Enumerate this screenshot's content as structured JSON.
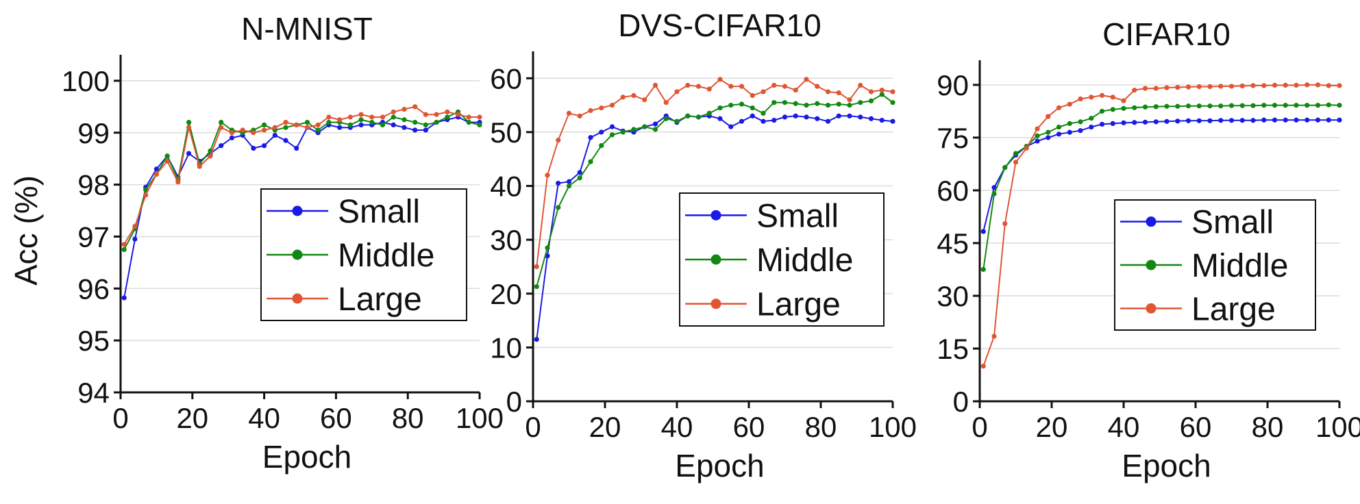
{
  "chart_data": [
    {
      "type": "line",
      "title": "N-MNIST",
      "xlabel": "Epoch",
      "ylabel": "Acc (%)",
      "xlim": [
        0,
        100
      ],
      "ylim": [
        94,
        100.5
      ],
      "xticks": [
        0,
        20,
        40,
        60,
        80,
        100
      ],
      "yticks": [
        94,
        95,
        96,
        97,
        98,
        99,
        100
      ],
      "grid": true,
      "legend": "center-right",
      "x": [
        1,
        4,
        7,
        10,
        13,
        16,
        19,
        22,
        25,
        28,
        31,
        34,
        37,
        40,
        43,
        46,
        49,
        52,
        55,
        58,
        61,
        64,
        67,
        70,
        73,
        76,
        79,
        82,
        85,
        88,
        91,
        94,
        97,
        100
      ],
      "series": [
        {
          "name": "Small",
          "color": "#1a1ae6",
          "values": [
            95.82,
            96.95,
            97.95,
            98.3,
            98.55,
            98.15,
            98.6,
            98.45,
            98.6,
            98.75,
            98.9,
            98.95,
            98.7,
            98.75,
            98.95,
            98.85,
            98.7,
            99.1,
            99.0,
            99.15,
            99.1,
            99.1,
            99.15,
            99.15,
            99.2,
            99.15,
            99.1,
            99.05,
            99.05,
            99.2,
            99.25,
            99.3,
            99.2,
            99.2
          ]
        },
        {
          "name": "Middle",
          "color": "#118811",
          "values": [
            96.75,
            97.15,
            97.9,
            98.2,
            98.55,
            98.1,
            99.2,
            98.4,
            98.65,
            99.2,
            99.05,
            99.0,
            99.05,
            99.15,
            99.05,
            99.1,
            99.15,
            99.2,
            99.05,
            99.2,
            99.2,
            99.15,
            99.25,
            99.2,
            99.15,
            99.3,
            99.25,
            99.2,
            99.15,
            99.2,
            99.3,
            99.4,
            99.2,
            99.15
          ]
        },
        {
          "name": "Large",
          "color": "#e05533",
          "values": [
            96.85,
            97.2,
            97.8,
            98.2,
            98.45,
            98.05,
            99.1,
            98.35,
            98.55,
            99.1,
            99.0,
            99.05,
            99.0,
            99.05,
            99.1,
            99.2,
            99.15,
            99.1,
            99.15,
            99.3,
            99.25,
            99.3,
            99.35,
            99.3,
            99.3,
            99.4,
            99.45,
            99.5,
            99.35,
            99.35,
            99.4,
            99.35,
            99.3,
            99.3
          ]
        }
      ]
    },
    {
      "type": "line",
      "title": "DVS-CIFAR10",
      "xlabel": "Epoch",
      "ylabel": "",
      "xlim": [
        0,
        100
      ],
      "ylim": [
        0,
        65
      ],
      "xticks": [
        0,
        20,
        40,
        60,
        80,
        100
      ],
      "yticks": [
        0,
        10,
        20,
        30,
        40,
        50,
        60
      ],
      "grid": true,
      "legend": "center-right",
      "x": [
        1,
        4,
        7,
        10,
        13,
        16,
        19,
        22,
        25,
        28,
        31,
        34,
        37,
        40,
        43,
        46,
        49,
        52,
        55,
        58,
        61,
        64,
        67,
        70,
        73,
        76,
        79,
        82,
        85,
        88,
        91,
        94,
        97,
        100
      ],
      "series": [
        {
          "name": "Small",
          "color": "#1a1ae6",
          "values": [
            11.5,
            27,
            40.5,
            40.8,
            42.5,
            49,
            50,
            51,
            50.2,
            50,
            51,
            51.5,
            53,
            51.8,
            53,
            52.8,
            53,
            52.5,
            51,
            52,
            53,
            52,
            52.2,
            52.8,
            53,
            52.8,
            52.5,
            52,
            53,
            53,
            52.8,
            52.5,
            52.2,
            52
          ]
        },
        {
          "name": "Middle",
          "color": "#118811",
          "values": [
            21.3,
            28.5,
            36,
            40,
            41.5,
            44.5,
            47.5,
            49.5,
            50,
            50.5,
            51,
            50.5,
            52.5,
            52,
            53,
            52.8,
            53.5,
            54.5,
            55,
            55.2,
            54.5,
            53.5,
            55.5,
            55.5,
            55.3,
            55,
            55.3,
            55,
            55.2,
            55,
            55.5,
            55.8,
            57,
            55.5
          ]
        },
        {
          "name": "Large",
          "color": "#e05533",
          "values": [
            25,
            42,
            48.5,
            53.5,
            53,
            54,
            54.5,
            55,
            56.5,
            56.8,
            56,
            58.7,
            55.5,
            57.5,
            58.7,
            58.5,
            58,
            59.8,
            58.5,
            58.5,
            56.8,
            57.5,
            58.7,
            58.5,
            57.8,
            59.8,
            58.5,
            57.5,
            57.3,
            56,
            58.7,
            57.5,
            57.8,
            57.5
          ]
        }
      ]
    },
    {
      "type": "line",
      "title": "CIFAR10",
      "xlabel": "Epoch",
      "ylabel": "",
      "xlim": [
        0,
        100
      ],
      "ylim": [
        0,
        97
      ],
      "xticks": [
        0,
        20,
        40,
        60,
        80,
        100
      ],
      "yticks": [
        0,
        15,
        30,
        45,
        60,
        75,
        90
      ],
      "grid": true,
      "legend": "center-right",
      "x": [
        1,
        4,
        7,
        10,
        13,
        16,
        19,
        22,
        25,
        28,
        31,
        34,
        37,
        40,
        43,
        46,
        49,
        52,
        55,
        58,
        61,
        64,
        67,
        70,
        73,
        76,
        79,
        82,
        85,
        88,
        91,
        94,
        97,
        100
      ],
      "series": [
        {
          "name": "Small",
          "color": "#1a1ae6",
          "values": [
            48.3,
            60.8,
            66.5,
            70,
            72.5,
            74,
            75,
            76,
            76.5,
            77,
            78,
            78.8,
            79,
            79.2,
            79.3,
            79.4,
            79.5,
            79.6,
            79.7,
            79.8,
            79.8,
            79.8,
            79.9,
            79.9,
            79.9,
            79.9,
            80,
            80,
            80,
            80,
            80,
            80,
            80,
            80
          ]
        },
        {
          "name": "Middle",
          "color": "#118811",
          "values": [
            37.5,
            59,
            66.5,
            70.5,
            72.5,
            75.5,
            76.5,
            78,
            79,
            79.5,
            80.5,
            82.5,
            83,
            83.3,
            83.5,
            83.7,
            83.8,
            83.9,
            83.9,
            84,
            84,
            84,
            84,
            84.1,
            84.1,
            84.1,
            84.2,
            84.2,
            84.2,
            84.2,
            84.2,
            84.2,
            84.3,
            84.2
          ]
        },
        {
          "name": "Large",
          "color": "#e05533",
          "values": [
            10,
            18.5,
            50.5,
            68,
            72,
            77.5,
            81,
            83.5,
            84.5,
            86,
            86.5,
            87,
            86.5,
            85.5,
            88.5,
            89,
            89,
            89.2,
            89.3,
            89.4,
            89.5,
            89.5,
            89.6,
            89.6,
            89.7,
            89.8,
            89.8,
            89.9,
            89.9,
            89.9,
            90,
            90,
            89.8,
            89.8
          ]
        }
      ]
    }
  ]
}
